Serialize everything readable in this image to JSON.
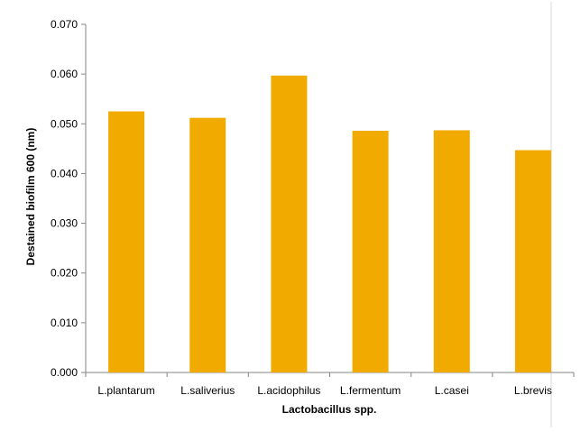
{
  "chart_data": {
    "type": "bar",
    "categories": [
      "L.plantarum",
      "L.saliverius",
      "L.acidophilus",
      "L.fermentum",
      "L.casei",
      "L.brevis"
    ],
    "values": [
      0.0525,
      0.0512,
      0.0597,
      0.0486,
      0.0487,
      0.0447
    ],
    "title": "",
    "xlabel": "Lactobacillus spp.",
    "ylabel": "Destained biofilm 600 (nm)",
    "ylim": [
      0,
      0.07
    ],
    "yticks": [
      "0.000",
      "0.010",
      "0.020",
      "0.030",
      "0.040",
      "0.050",
      "0.060",
      "0.070"
    ],
    "grid": false,
    "legend": "none",
    "bar_color": "#F0AA00",
    "axis_color": "#868686"
  }
}
